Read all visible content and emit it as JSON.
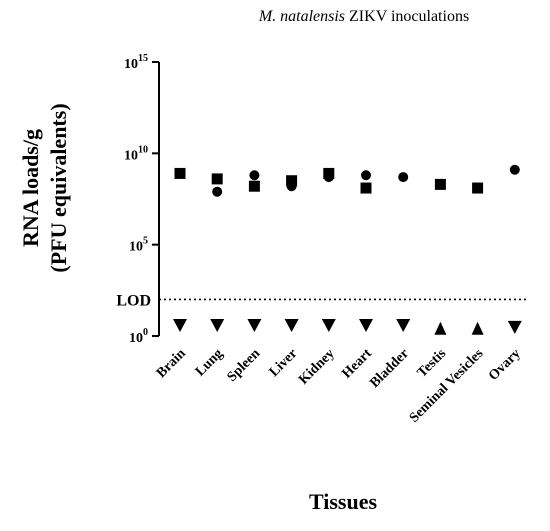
{
  "chart_data": {
    "type": "scatter",
    "title_italic": "M. natalensis",
    "title_rest": " ZIKV inoculations",
    "xlabel": "Tissues",
    "ylabel_line1": "RNA loads/g",
    "ylabel_line2": "(PFU equivalents)",
    "y_scale": "log10",
    "ylim_exp": [
      0,
      15
    ],
    "yticks": [
      {
        "base": "10",
        "exp": "0",
        "value_exp": 0
      },
      {
        "base": "10",
        "exp": "5",
        "value_exp": 5
      },
      {
        "base": "10",
        "exp": "10",
        "value_exp": 10
      },
      {
        "base": "10",
        "exp": "15",
        "value_exp": 15
      }
    ],
    "lod": {
      "label": "LOD",
      "value_exp": 2.0,
      "style": "dotted"
    },
    "categories": [
      "Brain",
      "Lung",
      "Spleen",
      "Liver",
      "Kidney",
      "Heart",
      "Bladder",
      "Testis",
      "Seminal Vesicles",
      "Ovary"
    ],
    "series": [
      {
        "marker": "square",
        "values_exp": [
          8.9,
          8.6,
          8.2,
          8.5,
          8.9,
          8.1,
          null,
          8.3,
          8.1,
          null
        ]
      },
      {
        "marker": "circle",
        "values_exp": [
          null,
          7.9,
          8.8,
          8.2,
          8.7,
          8.8,
          8.7,
          null,
          null,
          9.1
        ]
      },
      {
        "marker": "triangle-down",
        "values_exp": [
          0.6,
          0.6,
          0.6,
          0.6,
          0.6,
          0.6,
          0.6,
          null,
          null,
          0.5
        ]
      },
      {
        "marker": "triangle-up",
        "values_exp": [
          null,
          null,
          null,
          null,
          null,
          null,
          null,
          0.4,
          0.4,
          null
        ]
      }
    ],
    "grid": false,
    "legend": "none"
  }
}
